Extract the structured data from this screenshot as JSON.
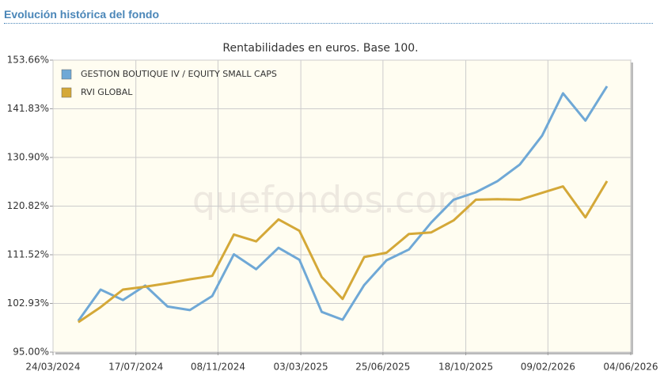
{
  "header": {
    "title": "Evolución histórica del fondo"
  },
  "chart_data": {
    "type": "line",
    "title": "Rentabilidades en euros. Base 100.",
    "watermark": "quefondos.com",
    "x": [
      35,
      66,
      97,
      128,
      159,
      190,
      221,
      251,
      282,
      313,
      342,
      373,
      402,
      432,
      463,
      494,
      525,
      556,
      587,
      617,
      648,
      679,
      708,
      739,
      769
    ],
    "series": [
      {
        "name": "GESTION BOUTIQUE IV / EQUITY SMALL CAPS",
        "color": "#6fa8d6",
        "values": [
          100.0,
          105.3,
          103.5,
          106.0,
          102.4,
          101.8,
          104.2,
          111.6,
          108.9,
          112.8,
          110.6,
          101.5,
          100.2,
          106.1,
          110.5,
          112.5,
          117.6,
          122.1,
          123.6,
          125.9,
          129.4,
          135.7,
          145.5,
          139.1,
          147.2
        ]
      },
      {
        "name": "RVI GLOBAL",
        "color": "#d4a838",
        "values": [
          99.8,
          102.3,
          105.3,
          105.8,
          106.4,
          107.1,
          107.7,
          115.3,
          114.0,
          118.2,
          116.0,
          107.5,
          103.7,
          111.1,
          111.9,
          115.4,
          115.7,
          118.0,
          122.1,
          122.2,
          122.1,
          123.5,
          124.8,
          118.6,
          125.9
        ]
      }
    ],
    "xlim": [
      0,
      802
    ],
    "xticks": [
      {
        "value": 0,
        "label": "24/03/2024"
      },
      {
        "value": 115,
        "label": "17/07/2024"
      },
      {
        "value": 229,
        "label": "08/11/2024"
      },
      {
        "value": 344,
        "label": "03/03/2025"
      },
      {
        "value": 458,
        "label": "25/06/2025"
      },
      {
        "value": 573,
        "label": "18/10/2025"
      },
      {
        "value": 687,
        "label": "09/02/2026"
      },
      {
        "value": 802,
        "label": "04/06/2026"
      }
    ],
    "ylim": [
      95,
      153.66
    ],
    "yticks": [
      {
        "value": 95,
        "label": "95.00%"
      },
      {
        "value": 102.93,
        "label": "102.93%"
      },
      {
        "value": 111.52,
        "label": "111.52%"
      },
      {
        "value": 120.82,
        "label": "120.82%"
      },
      {
        "value": 130.9,
        "label": "130.90%"
      },
      {
        "value": 141.83,
        "label": "141.83%"
      },
      {
        "value": 153.66,
        "label": "153.66%"
      }
    ],
    "log_y": true,
    "grid": true,
    "legend": "top-left"
  }
}
